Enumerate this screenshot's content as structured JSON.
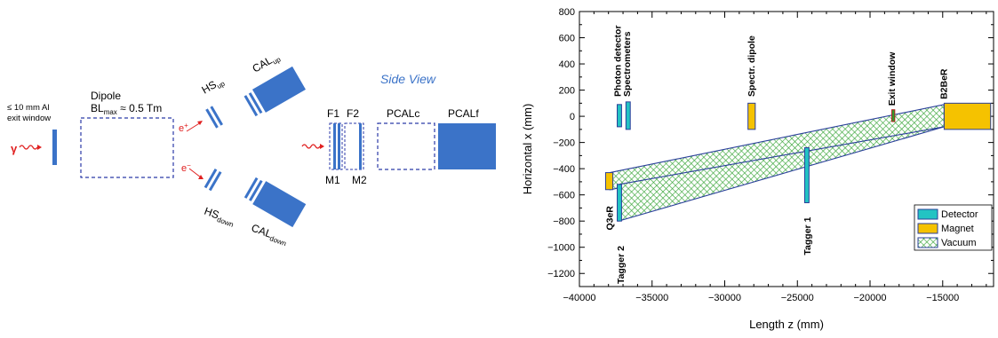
{
  "left_diagram": {
    "exit_window_label_line1": "≤ 10 mm Al",
    "exit_window_label_line2": "exit window",
    "gamma_label": "γ",
    "dipole_label": "Dipole",
    "dipole_field_prefix": "BL",
    "dipole_field_sub": "max",
    "dipole_field_suffix": " ≈ 0.5 Tm",
    "positron_label": "e",
    "positron_sup": "+",
    "electron_label": "e",
    "electron_sup": "−",
    "hs_up": "HS",
    "hs_up_sub": "up",
    "hs_down": "HS",
    "hs_down_sub": "down",
    "cal_up": "CAL",
    "cal_up_sub": "up",
    "cal_down": "CAL",
    "cal_down_sub": "down",
    "side_view_label": "Side View",
    "f1_label": "F1",
    "f2_label": "F2",
    "m1_label": "M1",
    "m2_label": "M2",
    "pcalc_label": "PCALc",
    "pcalf_label": "PCALf",
    "colors": {
      "blue": "#3b73c8",
      "red": "#e02020",
      "side_view": "#3b73c8"
    }
  },
  "right_chart": {
    "xlabel": "Length z (mm)",
    "ylabel": "Horizontal x (mm)",
    "x_ticks": [
      "−40000",
      "−35000",
      "−30000",
      "−25000",
      "−20000",
      "−15000"
    ],
    "y_ticks": [
      "800",
      "600",
      "400",
      "200",
      "0",
      "−200",
      "−400",
      "−600",
      "−800",
      "−1000",
      "−1200"
    ],
    "legend": {
      "detector": "Detector",
      "magnet": "Magnet",
      "vacuum": "Vacuum"
    },
    "element_labels": {
      "photon_detector": "Photon detector",
      "spectrometers": "Spectrometers",
      "spectr_dipole": "Spectr. dipole",
      "exit_window": "Exit window",
      "b2ber": "B2BeR",
      "q3er": "Q3eR",
      "tagger2": "Tagger 2",
      "tagger1": "Tagger 1"
    },
    "colors": {
      "detector": "#22c3c3",
      "magnet": "#f5c200",
      "vacuum": "#3aa63a",
      "exit_window": "#2e9d2e",
      "outline": "#2a3f9a"
    }
  },
  "chart_data": {
    "type": "diagram",
    "xlabel": "Length z (mm)",
    "ylabel": "Horizontal x (mm)",
    "xlim": [
      -40000,
      -11500
    ],
    "ylim": [
      -1300,
      800
    ],
    "elements": [
      {
        "name": "Photon detector",
        "kind": "detector",
        "z": [
          -37400,
          -37100
        ],
        "x": [
          -80,
          90
        ]
      },
      {
        "name": "Spectrometers",
        "kind": "detector",
        "z": [
          -36800,
          -36500
        ],
        "x": [
          -100,
          110
        ]
      },
      {
        "name": "Spectr. dipole",
        "kind": "magnet",
        "z": [
          -28400,
          -27900
        ],
        "x": [
          -100,
          100
        ]
      },
      {
        "name": "Exit window",
        "kind": "exit_window",
        "z": [
          -18500,
          -18300
        ],
        "x": [
          -40,
          50
        ]
      },
      {
        "name": "B2BeR",
        "kind": "magnet",
        "z": [
          -14900,
          -11700
        ],
        "x": [
          -100,
          100
        ]
      },
      {
        "name": "Q3eR",
        "kind": "magnet",
        "z": [
          -38200,
          -37700
        ],
        "x": [
          -560,
          -430
        ]
      },
      {
        "name": "Tagger 2",
        "kind": "detector",
        "z": [
          -37400,
          -37100
        ],
        "x": [
          -800,
          -520
        ]
      },
      {
        "name": "Tagger 1",
        "kind": "detector",
        "z": [
          -24500,
          -24200
        ],
        "x": [
          -660,
          -240
        ]
      }
    ],
    "vacuum_regions": [
      {
        "points": [
          [
            -37900,
            -430
          ],
          [
            -14900,
            90
          ],
          [
            -14900,
            -80
          ],
          [
            -37900,
            -560
          ]
        ]
      },
      {
        "points": [
          [
            -37300,
            -520
          ],
          [
            -14900,
            -80
          ],
          [
            -37300,
            -800
          ]
        ]
      }
    ],
    "legend": [
      "Detector",
      "Magnet",
      "Vacuum"
    ],
    "legend_position": "bottom-right"
  }
}
